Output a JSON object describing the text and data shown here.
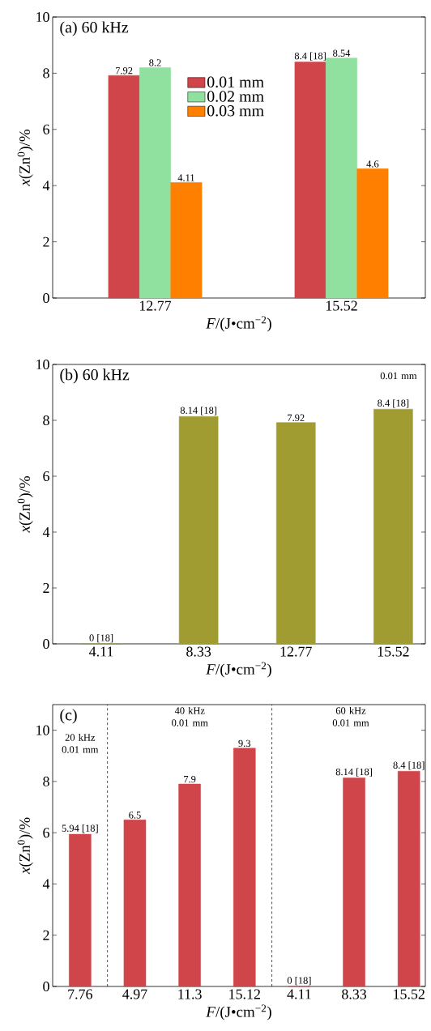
{
  "chart_data": [
    {
      "type": "bar",
      "title": "(a) 60 kHz",
      "xlabel": "*F*/(J•cm$^{−2}$)",
      "ylabel": "*x*(Zn$^{0}$)/%",
      "categories": [
        "12.77",
        "15.52"
      ],
      "series": [
        {
          "name": "0.01 mm",
          "color": "#d0454a",
          "values": [
            7.92,
            8.4
          ],
          "value_labels": [
            "7.92",
            "8.4 [18]"
          ]
        },
        {
          "name": "0.02 mm",
          "color": "#90e0a0",
          "values": [
            8.2,
            8.54
          ],
          "value_labels": [
            "8.2",
            "8.54"
          ]
        },
        {
          "name": "0.03 mm",
          "color": "#ff8000",
          "values": [
            4.11,
            4.6
          ],
          "value_labels": [
            "4.11",
            "4.6"
          ]
        }
      ],
      "ylim": [
        0,
        10
      ],
      "yticks": [
        0,
        2,
        4,
        6,
        8,
        10
      ],
      "legend": "top"
    },
    {
      "type": "bar",
      "title": "(b) 60 kHz",
      "xlabel": "*F*/(J•cm$^{−2}$)",
      "ylabel": "*x*(Zn$^{0}$)/%",
      "categories": [
        "4.11",
        "8.33",
        "12.77",
        "15.52"
      ],
      "values": [
        0,
        8.14,
        7.92,
        8.4
      ],
      "value_labels": [
        "0 [18]",
        "8.14 [18]",
        "7.92",
        "8.4 [18]"
      ],
      "color": "#a09c32",
      "ylim": [
        0,
        10
      ],
      "yticks": [
        0,
        2,
        4,
        6,
        8,
        10
      ],
      "annotations": [
        "0.01 mm"
      ]
    },
    {
      "type": "bar",
      "title": "(c)",
      "xlabel": "*F*/(J•cm$^{−2}$)",
      "ylabel": "*x*(Zn$^{0}$)/%",
      "categories": [
        "7.76",
        "4.97",
        "11.3",
        "15.12",
        "4.11",
        "8.33",
        "15.52"
      ],
      "values": [
        5.94,
        6.5,
        7.9,
        9.3,
        0,
        8.14,
        8.4
      ],
      "value_labels": [
        "5.94 [18]",
        "6.5",
        "7.9",
        "9.3",
        "0 [18]",
        "8.14 [18]",
        "8.4 [18]"
      ],
      "color": "#d0454a",
      "ylim": [
        0,
        11
      ],
      "yticks": [
        0,
        2,
        4,
        6,
        8,
        10
      ],
      "annotations": [
        "20 kHz 0.01 mm",
        "40 kHz 0.01 mm",
        "60 kHz 0.01 mm"
      ]
    }
  ]
}
